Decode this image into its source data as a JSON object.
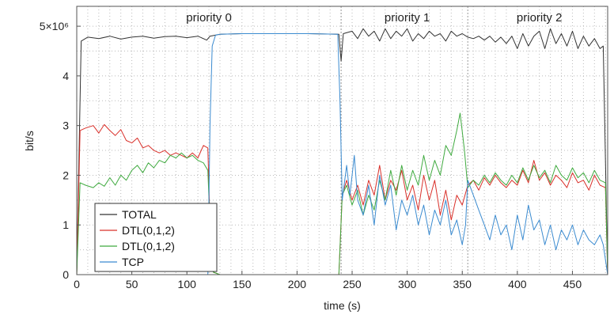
{
  "chart_data": {
    "type": "line",
    "xlabel": "time (s)",
    "ylabel": "bit/s",
    "xlim": [
      0,
      482
    ],
    "ylim": [
      0,
      5.4
    ],
    "y_unit_multiplier": 1000000,
    "xticks": [
      0,
      50,
      100,
      150,
      200,
      250,
      300,
      350,
      400,
      450
    ],
    "xtick_labels": [
      "0",
      "50",
      "100",
      "150",
      "200",
      "250",
      "300",
      "350",
      "400",
      "450"
    ],
    "yticks": [
      0,
      1,
      2,
      3,
      4,
      5
    ],
    "ytick_labels": [
      "0",
      "1",
      "2",
      "3",
      "4",
      "5×10⁶"
    ],
    "grid": true,
    "regions": [
      {
        "label": "priority 0",
        "x_center": 120
      },
      {
        "label": "priority 1",
        "x_center": 300
      },
      {
        "label": "priority 2",
        "x_center": 420
      }
    ],
    "boundaries": [
      240,
      355
    ],
    "legend": "bottom-left",
    "series": [
      {
        "name": "TOTAL",
        "color": "#333333",
        "points": [
          [
            0,
            0
          ],
          [
            4,
            4.7
          ],
          [
            10,
            4.78
          ],
          [
            20,
            4.75
          ],
          [
            30,
            4.8
          ],
          [
            40,
            4.74
          ],
          [
            50,
            4.78
          ],
          [
            60,
            4.8
          ],
          [
            70,
            4.76
          ],
          [
            80,
            4.79
          ],
          [
            90,
            4.8
          ],
          [
            100,
            4.77
          ],
          [
            110,
            4.8
          ],
          [
            118,
            4.72
          ],
          [
            121,
            4.8
          ],
          [
            130,
            4.84
          ],
          [
            150,
            4.85
          ],
          [
            180,
            4.85
          ],
          [
            210,
            4.85
          ],
          [
            238,
            4.84
          ],
          [
            240,
            4.3
          ],
          [
            242,
            4.85
          ],
          [
            250,
            4.9
          ],
          [
            255,
            4.75
          ],
          [
            260,
            4.95
          ],
          [
            265,
            4.8
          ],
          [
            270,
            4.9
          ],
          [
            275,
            4.7
          ],
          [
            280,
            4.95
          ],
          [
            285,
            4.75
          ],
          [
            290,
            4.9
          ],
          [
            295,
            4.8
          ],
          [
            300,
            4.95
          ],
          [
            305,
            4.7
          ],
          [
            310,
            4.85
          ],
          [
            315,
            4.75
          ],
          [
            320,
            4.9
          ],
          [
            325,
            4.8
          ],
          [
            330,
            4.85
          ],
          [
            335,
            4.7
          ],
          [
            340,
            4.9
          ],
          [
            345,
            4.8
          ],
          [
            350,
            4.85
          ],
          [
            355,
            4.78
          ],
          [
            360,
            4.75
          ],
          [
            365,
            4.8
          ],
          [
            370,
            4.72
          ],
          [
            375,
            4.8
          ],
          [
            380,
            4.68
          ],
          [
            385,
            4.78
          ],
          [
            390,
            4.65
          ],
          [
            395,
            4.8
          ],
          [
            400,
            4.55
          ],
          [
            405,
            4.85
          ],
          [
            410,
            4.6
          ],
          [
            415,
            4.8
          ],
          [
            420,
            4.9
          ],
          [
            425,
            4.55
          ],
          [
            430,
            4.95
          ],
          [
            435,
            4.65
          ],
          [
            440,
            4.85
          ],
          [
            445,
            4.6
          ],
          [
            450,
            4.9
          ],
          [
            455,
            4.55
          ],
          [
            460,
            4.8
          ],
          [
            465,
            4.6
          ],
          [
            470,
            4.75
          ],
          [
            475,
            4.55
          ],
          [
            478,
            4.6
          ],
          [
            482,
            0
          ]
        ]
      },
      {
        "name": "DTL(0,1,2)",
        "color": "#d9302a",
        "points": [
          [
            0,
            0
          ],
          [
            3,
            2.9
          ],
          [
            8,
            2.95
          ],
          [
            15,
            3.0
          ],
          [
            20,
            2.85
          ],
          [
            25,
            3.02
          ],
          [
            30,
            2.9
          ],
          [
            35,
            2.8
          ],
          [
            40,
            2.92
          ],
          [
            45,
            2.7
          ],
          [
            50,
            2.65
          ],
          [
            55,
            2.75
          ],
          [
            60,
            2.55
          ],
          [
            65,
            2.6
          ],
          [
            70,
            2.5
          ],
          [
            75,
            2.45
          ],
          [
            80,
            2.5
          ],
          [
            85,
            2.4
          ],
          [
            90,
            2.45
          ],
          [
            95,
            2.4
          ],
          [
            100,
            2.35
          ],
          [
            105,
            2.45
          ],
          [
            110,
            2.35
          ],
          [
            115,
            2.6
          ],
          [
            119,
            2.55
          ],
          [
            121,
            1.0
          ],
          [
            124,
            0.05
          ],
          [
            130,
            0.0
          ],
          [
            180,
            0.0
          ],
          [
            238,
            0.0
          ],
          [
            241,
            1.6
          ],
          [
            245,
            1.9
          ],
          [
            250,
            1.5
          ],
          [
            255,
            1.8
          ],
          [
            260,
            1.4
          ],
          [
            265,
            1.9
          ],
          [
            270,
            1.6
          ],
          [
            275,
            2.2
          ],
          [
            280,
            1.5
          ],
          [
            285,
            1.9
          ],
          [
            290,
            1.7
          ],
          [
            295,
            2.1
          ],
          [
            300,
            1.5
          ],
          [
            305,
            1.8
          ],
          [
            310,
            1.3
          ],
          [
            315,
            2.0
          ],
          [
            320,
            1.5
          ],
          [
            325,
            1.9
          ],
          [
            330,
            1.2
          ],
          [
            335,
            1.7
          ],
          [
            340,
            1.1
          ],
          [
            345,
            1.6
          ],
          [
            350,
            1.4
          ],
          [
            355,
            1.8
          ],
          [
            360,
            1.9
          ],
          [
            365,
            1.7
          ],
          [
            370,
            1.95
          ],
          [
            375,
            1.8
          ],
          [
            380,
            2.0
          ],
          [
            385,
            1.85
          ],
          [
            390,
            1.75
          ],
          [
            395,
            1.9
          ],
          [
            400,
            1.8
          ],
          [
            405,
            2.1
          ],
          [
            410,
            1.85
          ],
          [
            415,
            2.3
          ],
          [
            420,
            1.9
          ],
          [
            425,
            2.05
          ],
          [
            430,
            1.8
          ],
          [
            435,
            2.0
          ],
          [
            440,
            1.9
          ],
          [
            445,
            1.75
          ],
          [
            450,
            2.05
          ],
          [
            455,
            1.85
          ],
          [
            460,
            1.9
          ],
          [
            465,
            1.7
          ],
          [
            470,
            2.0
          ],
          [
            475,
            1.8
          ],
          [
            480,
            1.75
          ],
          [
            482,
            0
          ]
        ]
      },
      {
        "name": "DTL(0,1,2)",
        "color": "#3faa3f",
        "points": [
          [
            0,
            0
          ],
          [
            3,
            1.85
          ],
          [
            8,
            1.8
          ],
          [
            15,
            1.75
          ],
          [
            20,
            1.85
          ],
          [
            25,
            1.78
          ],
          [
            30,
            1.95
          ],
          [
            35,
            1.8
          ],
          [
            40,
            2.0
          ],
          [
            45,
            1.9
          ],
          [
            50,
            2.1
          ],
          [
            55,
            2.2
          ],
          [
            60,
            2.05
          ],
          [
            65,
            2.25
          ],
          [
            70,
            2.15
          ],
          [
            75,
            2.3
          ],
          [
            80,
            2.25
          ],
          [
            85,
            2.4
          ],
          [
            90,
            2.35
          ],
          [
            95,
            2.45
          ],
          [
            100,
            2.35
          ],
          [
            105,
            2.4
          ],
          [
            110,
            2.3
          ],
          [
            115,
            2.25
          ],
          [
            119,
            2.1
          ],
          [
            121,
            1.0
          ],
          [
            124,
            0.05
          ],
          [
            130,
            0.0
          ],
          [
            180,
            0.0
          ],
          [
            238,
            0.0
          ],
          [
            241,
            1.6
          ],
          [
            245,
            1.8
          ],
          [
            250,
            1.4
          ],
          [
            255,
            1.7
          ],
          [
            260,
            1.2
          ],
          [
            265,
            1.6
          ],
          [
            270,
            1.3
          ],
          [
            275,
            1.9
          ],
          [
            280,
            1.5
          ],
          [
            285,
            2.1
          ],
          [
            290,
            1.6
          ],
          [
            295,
            2.2
          ],
          [
            300,
            1.7
          ],
          [
            305,
            2.1
          ],
          [
            310,
            1.8
          ],
          [
            315,
            2.4
          ],
          [
            320,
            1.9
          ],
          [
            325,
            2.3
          ],
          [
            330,
            2.0
          ],
          [
            335,
            2.6
          ],
          [
            340,
            2.4
          ],
          [
            345,
            2.9
          ],
          [
            348,
            3.25
          ],
          [
            352,
            2.5
          ],
          [
            355,
            1.75
          ],
          [
            360,
            1.9
          ],
          [
            365,
            1.8
          ],
          [
            370,
            2.0
          ],
          [
            375,
            1.85
          ],
          [
            380,
            2.05
          ],
          [
            385,
            1.9
          ],
          [
            390,
            1.8
          ],
          [
            395,
            2.0
          ],
          [
            400,
            1.85
          ],
          [
            405,
            2.15
          ],
          [
            410,
            1.9
          ],
          [
            415,
            2.2
          ],
          [
            420,
            1.95
          ],
          [
            425,
            2.1
          ],
          [
            430,
            1.85
          ],
          [
            435,
            2.2
          ],
          [
            440,
            2.0
          ],
          [
            445,
            1.9
          ],
          [
            450,
            2.15
          ],
          [
            455,
            1.95
          ],
          [
            460,
            2.05
          ],
          [
            465,
            1.85
          ],
          [
            470,
            2.1
          ],
          [
            475,
            1.9
          ],
          [
            480,
            1.85
          ],
          [
            482,
            0
          ]
        ]
      },
      {
        "name": "TCP",
        "color": "#3b8bd0",
        "points": [
          [
            0,
            0
          ],
          [
            119,
            0.0
          ],
          [
            121,
            3.0
          ],
          [
            123,
            4.6
          ],
          [
            126,
            4.82
          ],
          [
            130,
            4.84
          ],
          [
            150,
            4.85
          ],
          [
            180,
            4.85
          ],
          [
            210,
            4.85
          ],
          [
            237,
            4.84
          ],
          [
            239,
            3.5
          ],
          [
            241,
            1.5
          ],
          [
            245,
            2.2
          ],
          [
            248,
            1.6
          ],
          [
            252,
            2.4
          ],
          [
            255,
            1.5
          ],
          [
            260,
            1.2
          ],
          [
            265,
            1.8
          ],
          [
            270,
            1.0
          ],
          [
            275,
            2.0
          ],
          [
            280,
            1.4
          ],
          [
            285,
            1.8
          ],
          [
            290,
            0.9
          ],
          [
            295,
            1.5
          ],
          [
            300,
            1.2
          ],
          [
            305,
            1.6
          ],
          [
            310,
            1.0
          ],
          [
            315,
            1.4
          ],
          [
            320,
            0.8
          ],
          [
            325,
            1.3
          ],
          [
            330,
            1.0
          ],
          [
            335,
            1.5
          ],
          [
            340,
            0.8
          ],
          [
            345,
            1.1
          ],
          [
            350,
            0.6
          ],
          [
            353,
            1.0
          ],
          [
            355,
            1.9
          ],
          [
            360,
            1.6
          ],
          [
            365,
            1.3
          ],
          [
            370,
            1.0
          ],
          [
            375,
            0.7
          ],
          [
            380,
            1.2
          ],
          [
            385,
            0.8
          ],
          [
            390,
            1.0
          ],
          [
            395,
            0.5
          ],
          [
            400,
            1.2
          ],
          [
            405,
            0.7
          ],
          [
            410,
            1.4
          ],
          [
            415,
            0.9
          ],
          [
            420,
            1.1
          ],
          [
            425,
            0.6
          ],
          [
            430,
            1.0
          ],
          [
            435,
            0.5
          ],
          [
            440,
            0.9
          ],
          [
            445,
            0.7
          ],
          [
            450,
            1.0
          ],
          [
            455,
            0.6
          ],
          [
            460,
            0.9
          ],
          [
            465,
            0.7
          ],
          [
            470,
            0.6
          ],
          [
            475,
            0.8
          ],
          [
            478,
            0.6
          ],
          [
            482,
            0
          ]
        ]
      }
    ]
  }
}
